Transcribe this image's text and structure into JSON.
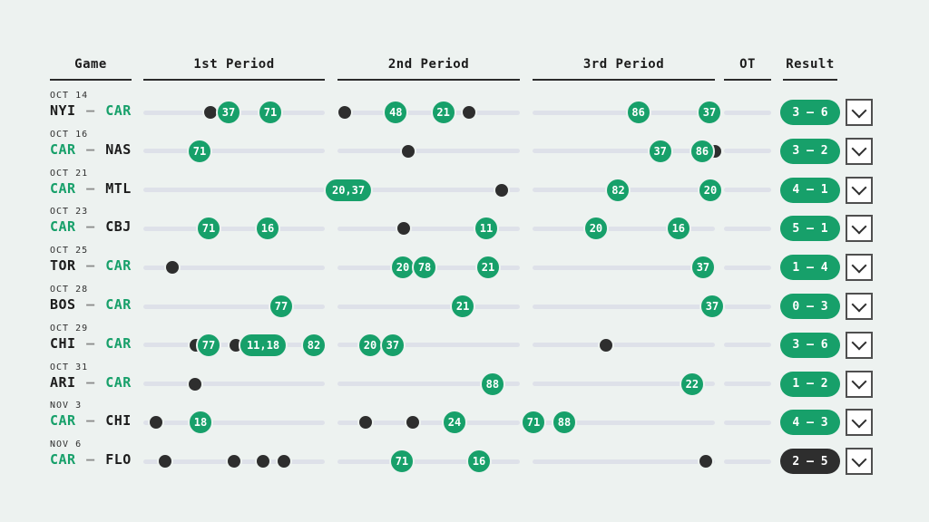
{
  "colors": {
    "background": "#edf2f0",
    "team_goal_green": "#17a06a",
    "opponent_goal_dark": "#2e2e2e",
    "track_gray": "#dee1e9",
    "win_pill": "#17a06a",
    "loss_pill": "#2e2e2e"
  },
  "header": {
    "columns": [
      "Game",
      "1st Period",
      "2nd Period",
      "3rd Period",
      "OT",
      "Result"
    ]
  },
  "rows": [
    {
      "date": "OCT 14",
      "team_away": "NYI",
      "team_home": "CAR",
      "separator": "–",
      "highlighted_team": "CAR",
      "events": [
        {
          "period": 1,
          "pos": 0.37,
          "type": "opponent-goal"
        },
        {
          "period": 1,
          "pos": 0.47,
          "type": "team-goal",
          "label": "37"
        },
        {
          "period": 1,
          "pos": 0.7,
          "type": "team-goal",
          "label": "71"
        },
        {
          "period": 2,
          "pos": 0.04,
          "type": "opponent-goal"
        },
        {
          "period": 2,
          "pos": 0.32,
          "type": "team-goal",
          "label": "48"
        },
        {
          "period": 2,
          "pos": 0.58,
          "type": "team-goal",
          "label": "21"
        },
        {
          "period": 2,
          "pos": 0.72,
          "type": "opponent-goal"
        },
        {
          "period": 3,
          "pos": 0.58,
          "type": "team-goal",
          "label": "86"
        },
        {
          "period": 3,
          "pos": 0.97,
          "type": "team-goal",
          "label": "37"
        }
      ],
      "result": {
        "score": "3 – 6",
        "outcome": "win"
      }
    },
    {
      "date": "OCT 16",
      "team_away": "CAR",
      "team_home": "NAS",
      "separator": "–",
      "highlighted_team": "CAR",
      "events": [
        {
          "period": 1,
          "pos": 0.31,
          "type": "team-goal",
          "label": "71"
        },
        {
          "period": 2,
          "pos": 0.39,
          "type": "opponent-goal"
        },
        {
          "period": 3,
          "pos": 0.7,
          "type": "team-goal",
          "label": "37"
        },
        {
          "period": 3,
          "pos": 1.0,
          "type": "opponent-goal"
        },
        {
          "period": 3,
          "pos": 0.93,
          "type": "team-goal",
          "label": "86"
        }
      ],
      "result": {
        "score": "3 – 2",
        "outcome": "win"
      }
    },
    {
      "date": "OCT 21",
      "team_away": "CAR",
      "team_home": "MTL",
      "separator": "–",
      "highlighted_team": "CAR",
      "events": [
        {
          "period": 2,
          "pos": 0.06,
          "type": "team-goal",
          "label": "20,37"
        },
        {
          "period": 2,
          "pos": 0.9,
          "type": "opponent-goal"
        },
        {
          "period": 3,
          "pos": 0.47,
          "type": "team-goal",
          "label": "82"
        },
        {
          "period": 3,
          "pos": 0.975,
          "type": "team-goal",
          "label": "20"
        }
      ],
      "result": {
        "score": "4 – 1",
        "outcome": "win"
      }
    },
    {
      "date": "OCT 23",
      "team_away": "CAR",
      "team_home": "CBJ",
      "separator": "–",
      "highlighted_team": "CAR",
      "events": [
        {
          "period": 1,
          "pos": 0.36,
          "type": "team-goal",
          "label": "71"
        },
        {
          "period": 1,
          "pos": 0.685,
          "type": "team-goal",
          "label": "16"
        },
        {
          "period": 2,
          "pos": 0.363,
          "type": "opponent-goal"
        },
        {
          "period": 2,
          "pos": 0.816,
          "type": "team-goal",
          "label": "11"
        },
        {
          "period": 3,
          "pos": 0.348,
          "type": "team-goal",
          "label": "20"
        },
        {
          "period": 3,
          "pos": 0.8,
          "type": "team-goal",
          "label": "16"
        }
      ],
      "result": {
        "score": "5 – 1",
        "outcome": "win"
      }
    },
    {
      "date": "OCT 25",
      "team_away": "TOR",
      "team_home": "CAR",
      "separator": "–",
      "highlighted_team": "CAR",
      "events": [
        {
          "period": 1,
          "pos": 0.16,
          "type": "opponent-goal"
        },
        {
          "period": 2,
          "pos": 0.358,
          "type": "team-goal",
          "label": "20"
        },
        {
          "period": 2,
          "pos": 0.478,
          "type": "team-goal",
          "label": "78"
        },
        {
          "period": 2,
          "pos": 0.826,
          "type": "team-goal",
          "label": "21"
        },
        {
          "period": 3,
          "pos": 0.935,
          "type": "team-goal",
          "label": "37"
        }
      ],
      "result": {
        "score": "1 – 4",
        "outcome": "win"
      }
    },
    {
      "date": "OCT 28",
      "team_away": "BOS",
      "team_home": "CAR",
      "separator": "–",
      "highlighted_team": "CAR",
      "events": [
        {
          "period": 1,
          "pos": 0.76,
          "type": "team-goal",
          "label": "77"
        },
        {
          "period": 2,
          "pos": 0.687,
          "type": "team-goal",
          "label": "21"
        },
        {
          "period": 3,
          "pos": 0.985,
          "type": "team-goal",
          "label": "37"
        }
      ],
      "result": {
        "score": "0 – 3",
        "outcome": "win"
      }
    },
    {
      "date": "OCT 29",
      "team_away": "CHI",
      "team_home": "CAR",
      "separator": "–",
      "highlighted_team": "CAR",
      "events": [
        {
          "period": 1,
          "pos": 0.29,
          "type": "opponent-goal"
        },
        {
          "period": 1,
          "pos": 0.36,
          "type": "team-goal",
          "label": "77"
        },
        {
          "period": 1,
          "pos": 0.51,
          "type": "opponent-goal"
        },
        {
          "period": 1,
          "pos": 0.66,
          "type": "team-goal",
          "label": "11,18"
        },
        {
          "period": 1,
          "pos": 0.94,
          "type": "team-goal",
          "label": "82"
        },
        {
          "period": 2,
          "pos": 0.179,
          "type": "team-goal",
          "label": "20"
        },
        {
          "period": 2,
          "pos": 0.303,
          "type": "team-goal",
          "label": "37"
        },
        {
          "period": 3,
          "pos": 0.403,
          "type": "opponent-goal"
        }
      ],
      "result": {
        "score": "3 – 6",
        "outcome": "win"
      }
    },
    {
      "date": "OCT 31",
      "team_away": "ARI",
      "team_home": "CAR",
      "separator": "–",
      "highlighted_team": "CAR",
      "events": [
        {
          "period": 1,
          "pos": 0.285,
          "type": "opponent-goal"
        },
        {
          "period": 2,
          "pos": 0.85,
          "type": "team-goal",
          "label": "88"
        },
        {
          "period": 3,
          "pos": 0.875,
          "type": "team-goal",
          "label": "22"
        }
      ],
      "result": {
        "score": "1 – 2",
        "outcome": "win"
      }
    },
    {
      "date": "NOV 3",
      "team_away": "CAR",
      "team_home": "CHI",
      "separator": "–",
      "highlighted_team": "CAR",
      "events": [
        {
          "period": 1,
          "pos": 0.07,
          "type": "opponent-goal"
        },
        {
          "period": 1,
          "pos": 0.315,
          "type": "team-goal",
          "label": "18"
        },
        {
          "period": 2,
          "pos": 0.154,
          "type": "opponent-goal"
        },
        {
          "period": 2,
          "pos": 0.413,
          "type": "opponent-goal"
        },
        {
          "period": 2,
          "pos": 0.642,
          "type": "team-goal",
          "label": "24"
        },
        {
          "period": 3,
          "pos": 0.005,
          "type": "team-goal",
          "label": "71"
        },
        {
          "period": 3,
          "pos": 0.174,
          "type": "team-goal",
          "label": "88"
        }
      ],
      "result": {
        "score": "4 – 3",
        "outcome": "win"
      }
    },
    {
      "date": "NOV 6",
      "team_away": "CAR",
      "team_home": "FLO",
      "separator": "–",
      "highlighted_team": "CAR",
      "events": [
        {
          "period": 1,
          "pos": 0.12,
          "type": "opponent-goal"
        },
        {
          "period": 1,
          "pos": 0.5,
          "type": "opponent-goal"
        },
        {
          "period": 1,
          "pos": 0.66,
          "type": "opponent-goal"
        },
        {
          "period": 1,
          "pos": 0.775,
          "type": "opponent-goal"
        },
        {
          "period": 2,
          "pos": 0.353,
          "type": "team-goal",
          "label": "71"
        },
        {
          "period": 2,
          "pos": 0.776,
          "type": "team-goal",
          "label": "16"
        },
        {
          "period": 3,
          "pos": 0.95,
          "type": "opponent-goal"
        }
      ],
      "result": {
        "score": "2 – 5",
        "outcome": "loss"
      }
    }
  ]
}
